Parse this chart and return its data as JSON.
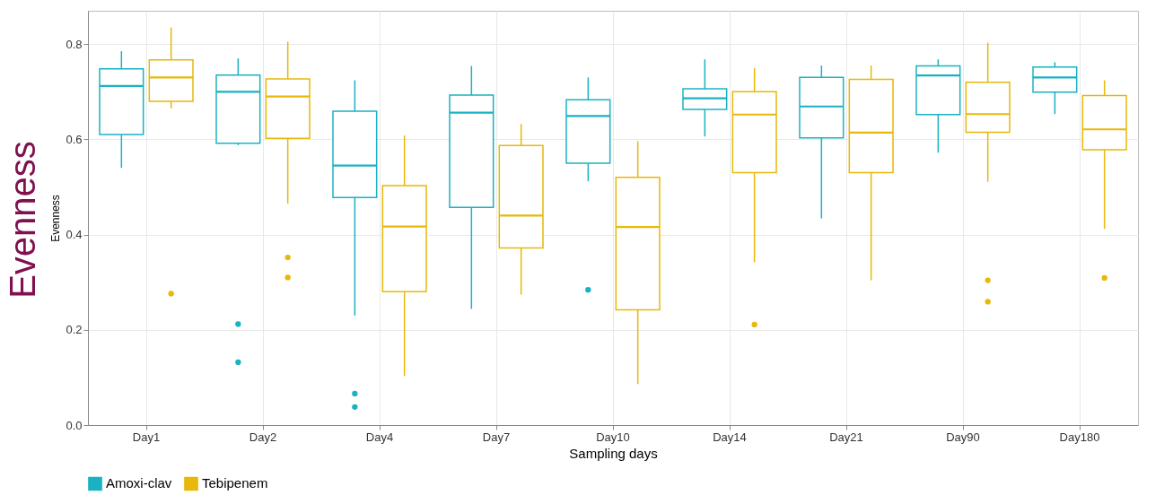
{
  "chart_data": {
    "type": "box",
    "xlabel": "Sampling days",
    "ylabel": "Evenness",
    "annotations": [
      "Evenness"
    ],
    "categories": [
      "Day1",
      "Day2",
      "Day4",
      "Day7",
      "Day10",
      "Day14",
      "Day21",
      "Day90",
      "Day180"
    ],
    "ylim": [
      0,
      0.87
    ],
    "yticks": [
      {
        "value": 0,
        "label": "0.0"
      },
      0.2,
      0.4,
      0.6,
      0.8
    ],
    "grid": true,
    "legend": "bottom",
    "series": [
      {
        "name": "Amoxi-clav",
        "color": "#1ab2c2",
        "boxes": [
          {
            "low": 0.54,
            "q1": 0.61,
            "median": 0.712,
            "q3": 0.748,
            "high": 0.785
          },
          {
            "low": 0.588,
            "q1": 0.592,
            "median": 0.7,
            "q3": 0.735,
            "high": 0.77,
            "outliers": [
              0.212,
              0.132
            ]
          },
          {
            "low": 0.23,
            "q1": 0.478,
            "median": 0.545,
            "q3": 0.659,
            "high": 0.724,
            "outliers": [
              0.066,
              0.038
            ]
          },
          {
            "low": 0.244,
            "q1": 0.457,
            "median": 0.656,
            "q3": 0.693,
            "high": 0.754
          },
          {
            "low": 0.512,
            "q1": 0.55,
            "median": 0.649,
            "q3": 0.683,
            "high": 0.73,
            "outliers": [
              0.284
            ]
          },
          {
            "low": 0.606,
            "q1": 0.663,
            "median": 0.686,
            "q3": 0.706,
            "high": 0.768
          },
          {
            "low": 0.434,
            "q1": 0.603,
            "median": 0.669,
            "q3": 0.73,
            "high": 0.755
          },
          {
            "low": 0.572,
            "q1": 0.652,
            "median": 0.734,
            "q3": 0.754,
            "high": 0.768
          },
          {
            "low": 0.653,
            "q1": 0.699,
            "median": 0.73,
            "q3": 0.752,
            "high": 0.762
          }
        ]
      },
      {
        "name": "Tebipenem",
        "color": "#e8b80a",
        "boxes": [
          {
            "low": 0.665,
            "q1": 0.68,
            "median": 0.73,
            "q3": 0.767,
            "high": 0.835,
            "outliers": [
              0.276
            ]
          },
          {
            "low": 0.465,
            "q1": 0.602,
            "median": 0.69,
            "q3": 0.727,
            "high": 0.805,
            "outliers": [
              0.352,
              0.31
            ]
          },
          {
            "low": 0.103,
            "q1": 0.28,
            "median": 0.417,
            "q3": 0.503,
            "high": 0.608
          },
          {
            "low": 0.274,
            "q1": 0.372,
            "median": 0.44,
            "q3": 0.587,
            "high": 0.632
          },
          {
            "low": 0.086,
            "q1": 0.242,
            "median": 0.416,
            "q3": 0.52,
            "high": 0.596
          },
          {
            "low": 0.342,
            "q1": 0.53,
            "median": 0.652,
            "q3": 0.7,
            "high": 0.75,
            "outliers": [
              0.211
            ]
          },
          {
            "low": 0.304,
            "q1": 0.53,
            "median": 0.614,
            "q3": 0.726,
            "high": 0.755
          },
          {
            "low": 0.511,
            "q1": 0.615,
            "median": 0.653,
            "q3": 0.72,
            "high": 0.803,
            "outliers": [
              0.304,
              0.259
            ]
          },
          {
            "low": 0.412,
            "q1": 0.578,
            "median": 0.621,
            "q3": 0.692,
            "high": 0.724,
            "outliers": [
              0.309
            ]
          }
        ]
      }
    ]
  }
}
